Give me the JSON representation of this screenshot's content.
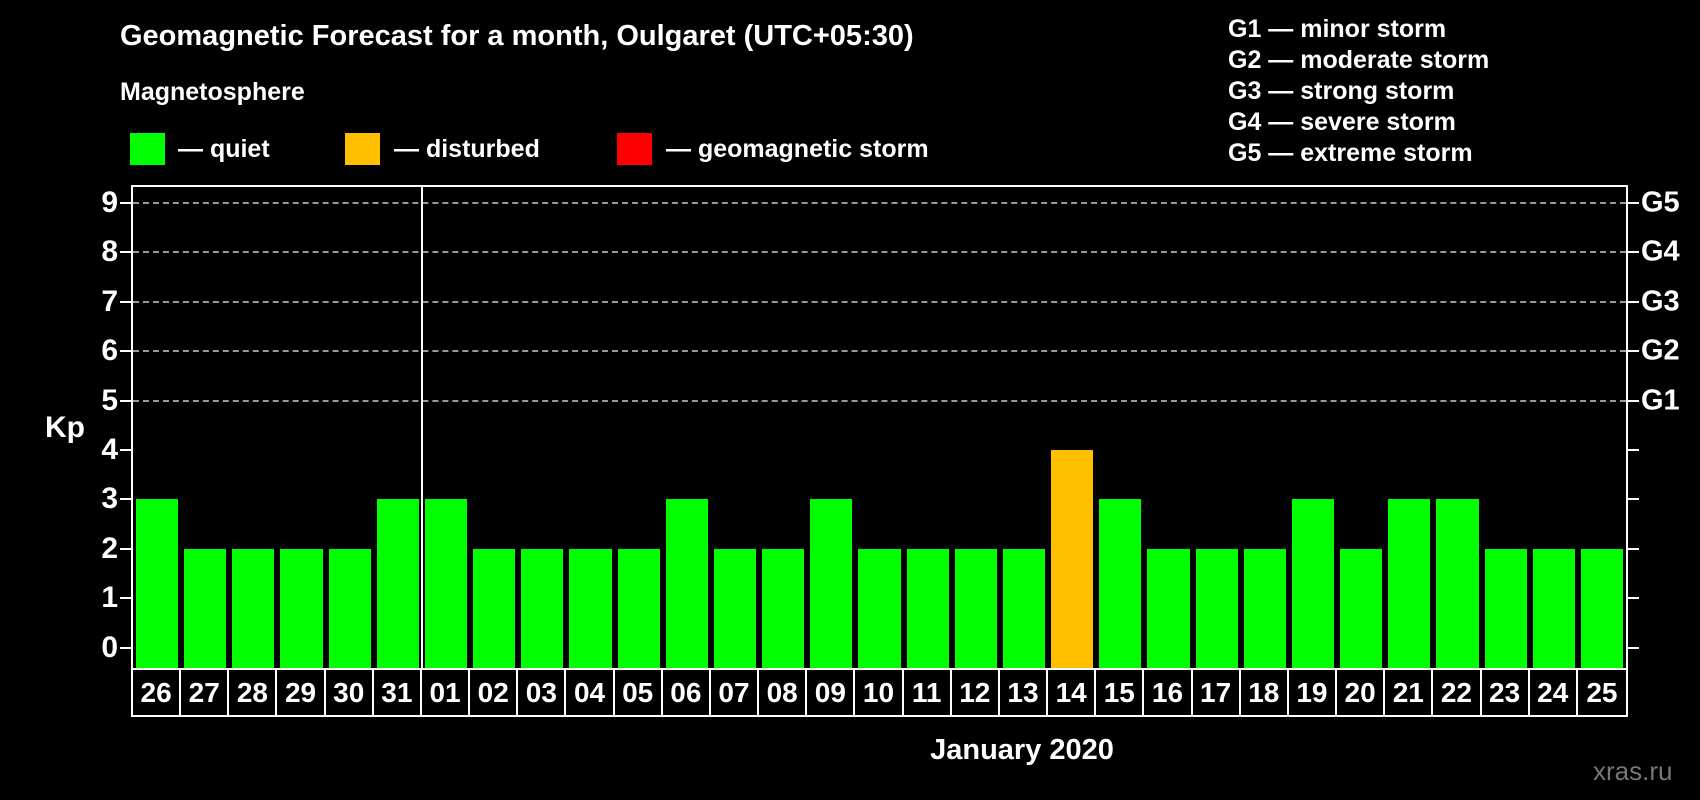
{
  "title": "Geomagnetic Forecast for a month, Oulgaret (UTC+05:30)",
  "subtitle": "Magnetosphere",
  "legend": {
    "items": [
      {
        "key": "quiet",
        "label": "— quiet",
        "color": "#00ff00"
      },
      {
        "key": "disturbed",
        "label": "— disturbed",
        "color": "#ffc000"
      },
      {
        "key": "storm",
        "label": "— geomagnetic storm",
        "color": "#ff0000"
      }
    ]
  },
  "g_legend": [
    "G1 — minor storm",
    "G2 — moderate storm",
    "G3 — strong storm",
    "G4 — severe storm",
    "G5 — extreme storm"
  ],
  "watermark": "xras.ru",
  "chart_data": {
    "type": "bar",
    "title": "Geomagnetic Forecast for a month, Oulgaret (UTC+05:30)",
    "xlabel": "January 2020",
    "ylabel": "Kp",
    "ylim": [
      0,
      9
    ],
    "grid": "dashed horizontal at Kp 5-9",
    "yticks": [
      0,
      1,
      2,
      3,
      4,
      5,
      6,
      7,
      8,
      9
    ],
    "gridline_levels": [
      5,
      6,
      7,
      8,
      9
    ],
    "right_axis_labels": [
      {
        "kp": 5,
        "label": "G1"
      },
      {
        "kp": 6,
        "label": "G2"
      },
      {
        "kp": 7,
        "label": "G3"
      },
      {
        "kp": 8,
        "label": "G4"
      },
      {
        "kp": 9,
        "label": "G5"
      }
    ],
    "month_separator_after_index": 5,
    "categories": [
      "26",
      "27",
      "28",
      "29",
      "30",
      "31",
      "01",
      "02",
      "03",
      "04",
      "05",
      "06",
      "07",
      "08",
      "09",
      "10",
      "11",
      "12",
      "13",
      "14",
      "15",
      "16",
      "17",
      "18",
      "19",
      "20",
      "21",
      "22",
      "23",
      "24",
      "25"
    ],
    "series": [
      {
        "name": "Kp forecast",
        "values": [
          3,
          2,
          2,
          2,
          2,
          3,
          3,
          2,
          2,
          2,
          2,
          3,
          2,
          2,
          3,
          2,
          2,
          2,
          2,
          4,
          3,
          2,
          2,
          2,
          3,
          2,
          3,
          3,
          2,
          2,
          2
        ]
      }
    ],
    "statuses": [
      "quiet",
      "quiet",
      "quiet",
      "quiet",
      "quiet",
      "quiet",
      "quiet",
      "quiet",
      "quiet",
      "quiet",
      "quiet",
      "quiet",
      "quiet",
      "quiet",
      "quiet",
      "quiet",
      "quiet",
      "quiet",
      "quiet",
      "disturbed",
      "quiet",
      "quiet",
      "quiet",
      "quiet",
      "quiet",
      "quiet",
      "quiet",
      "quiet",
      "quiet",
      "quiet",
      "quiet"
    ],
    "colors": {
      "quiet": "#00ff00",
      "disturbed": "#ffc000",
      "storm": "#ff0000"
    }
  }
}
